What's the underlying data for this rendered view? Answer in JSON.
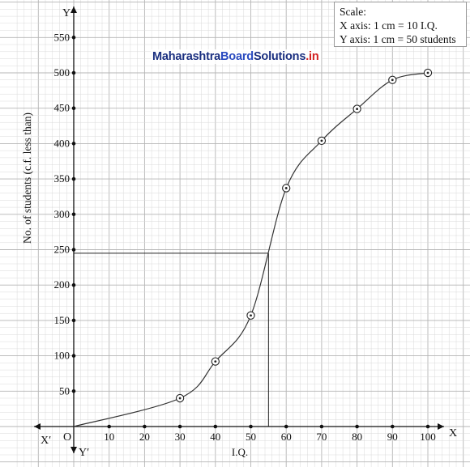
{
  "scale_box": {
    "title": "Scale:",
    "x_line": "X axis: 1 cm = 10 I.Q.",
    "y_line": "Y axis: 1 cm = 50 students"
  },
  "watermark": {
    "part1": "Maharashtra",
    "part2": "Board",
    "part3": "Solutions",
    "part4": ".in"
  },
  "axes": {
    "x_letter": "X",
    "x_neg_letter": "X′",
    "y_letter": "Y",
    "y_neg_letter": "Y′",
    "origin": "O"
  },
  "chart_data": {
    "type": "line",
    "title": "",
    "xlabel": "I.Q.",
    "ylabel": "No. of students (c.f. less than)",
    "xlim": [
      0,
      100
    ],
    "ylim": [
      0,
      550
    ],
    "x_ticks": [
      10,
      20,
      30,
      40,
      50,
      60,
      70,
      80,
      90,
      100
    ],
    "y_ticks": [
      50,
      100,
      150,
      200,
      250,
      300,
      350,
      400,
      450,
      500,
      550
    ],
    "grid": true,
    "series": [
      {
        "x": [
          0,
          30,
          40,
          50,
          60,
          70,
          80,
          90,
          100
        ],
        "y": [
          0,
          40,
          92,
          157,
          337,
          404,
          449,
          490,
          500
        ]
      }
    ],
    "reference_lines": {
      "y_value": 245,
      "x_value": 55
    },
    "colors": {
      "curve": "#333333",
      "grid_minor": "#d9d9d9",
      "grid_major": "#b5b5b5",
      "axis": "#111111"
    }
  }
}
